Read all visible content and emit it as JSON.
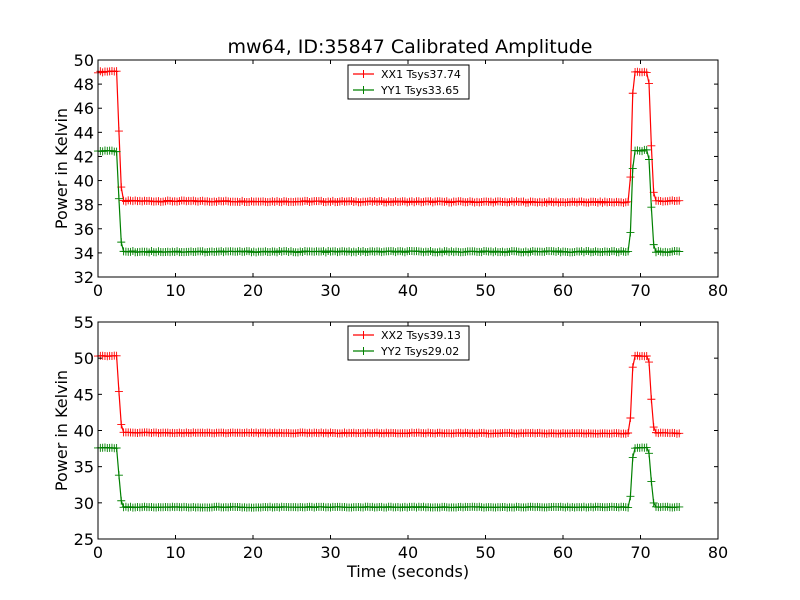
{
  "figure_title": "mw64, ID:35847 Calibrated Amplitude",
  "colors": {
    "xx": "#ff0000",
    "yy": "#008000",
    "frame": "#000000",
    "background": "#ffffff"
  },
  "chart_data": [
    {
      "type": "line",
      "title": "mw64, ID:35847 Calibrated Amplitude",
      "xlabel": "",
      "ylabel": "Power in Kelvin",
      "xlim": [
        0,
        80
      ],
      "ylim": [
        32,
        50
      ],
      "xticks": [
        "0",
        "10",
        "20",
        "30",
        "40",
        "50",
        "60",
        "70",
        "80"
      ],
      "yticks": [
        "32",
        "34",
        "36",
        "38",
        "40",
        "42",
        "44",
        "46",
        "48",
        "50"
      ],
      "grid": false,
      "legend_position": "top-center",
      "marker": "+",
      "series": [
        {
          "name": "XX1 Tsys37.74",
          "color": "#ff0000",
          "shape": [
            [
              0.0,
              49.0
            ],
            [
              2.5,
              49.1
            ],
            [
              2.8,
              41.6
            ],
            [
              3.1,
              38.3
            ],
            [
              68.4,
              38.2
            ],
            [
              68.7,
              40.3
            ],
            [
              69.0,
              47.2
            ],
            [
              69.3,
              49.0
            ],
            [
              70.9,
              49.0
            ],
            [
              71.2,
              47.6
            ],
            [
              71.5,
              40.5
            ],
            [
              71.8,
              38.3
            ],
            [
              75.0,
              38.3
            ]
          ],
          "samples": {
            "start": 0.0,
            "end": 75.0,
            "step": 0.3
          }
        },
        {
          "name": "YY1 Tsys33.65",
          "color": "#008000",
          "shape": [
            [
              0.0,
              42.5
            ],
            [
              2.5,
              42.4
            ],
            [
              2.8,
              36.6
            ],
            [
              3.1,
              34.1
            ],
            [
              68.4,
              34.1
            ],
            [
              68.7,
              35.7
            ],
            [
              69.0,
              41.0
            ],
            [
              69.3,
              42.5
            ],
            [
              70.9,
              42.5
            ],
            [
              71.2,
              41.4
            ],
            [
              71.5,
              35.9
            ],
            [
              71.8,
              34.1
            ],
            [
              75.0,
              34.1
            ]
          ],
          "samples": {
            "start": 0.0,
            "end": 75.0,
            "step": 0.3
          }
        }
      ]
    },
    {
      "type": "line",
      "title": "",
      "xlabel": "Time (seconds)",
      "ylabel": "Power in Kelvin",
      "xlim": [
        0,
        80
      ],
      "ylim": [
        25,
        55
      ],
      "xticks": [
        "0",
        "10",
        "20",
        "30",
        "40",
        "50",
        "60",
        "70",
        "80"
      ],
      "yticks": [
        "25",
        "30",
        "35",
        "40",
        "45",
        "50",
        "55"
      ],
      "grid": false,
      "legend_position": "top-center",
      "marker": "+",
      "series": [
        {
          "name": "XX2 Tsys39.13",
          "color": "#ff0000",
          "shape": [
            [
              0.0,
              50.3
            ],
            [
              2.5,
              50.3
            ],
            [
              2.8,
              43.0
            ],
            [
              3.1,
              39.7
            ],
            [
              68.4,
              39.6
            ],
            [
              68.7,
              41.7
            ],
            [
              69.0,
              48.7
            ],
            [
              69.3,
              50.3
            ],
            [
              70.9,
              50.3
            ],
            [
              71.2,
              49.0
            ],
            [
              71.5,
              41.9
            ],
            [
              71.8,
              39.7
            ],
            [
              75.0,
              39.6
            ]
          ],
          "samples": {
            "start": 0.0,
            "end": 75.0,
            "step": 0.3
          }
        },
        {
          "name": "YY2 Tsys29.02",
          "color": "#008000",
          "shape": [
            [
              0.0,
              37.6
            ],
            [
              2.5,
              37.6
            ],
            [
              2.8,
              31.9
            ],
            [
              3.1,
              29.4
            ],
            [
              68.4,
              29.4
            ],
            [
              68.7,
              30.9
            ],
            [
              69.0,
              36.3
            ],
            [
              69.3,
              37.6
            ],
            [
              70.9,
              37.6
            ],
            [
              71.2,
              36.4
            ],
            [
              71.5,
              31.2
            ],
            [
              71.8,
              29.4
            ],
            [
              75.0,
              29.4
            ]
          ],
          "samples": {
            "start": 0.0,
            "end": 75.0,
            "step": 0.3
          }
        }
      ]
    }
  ]
}
